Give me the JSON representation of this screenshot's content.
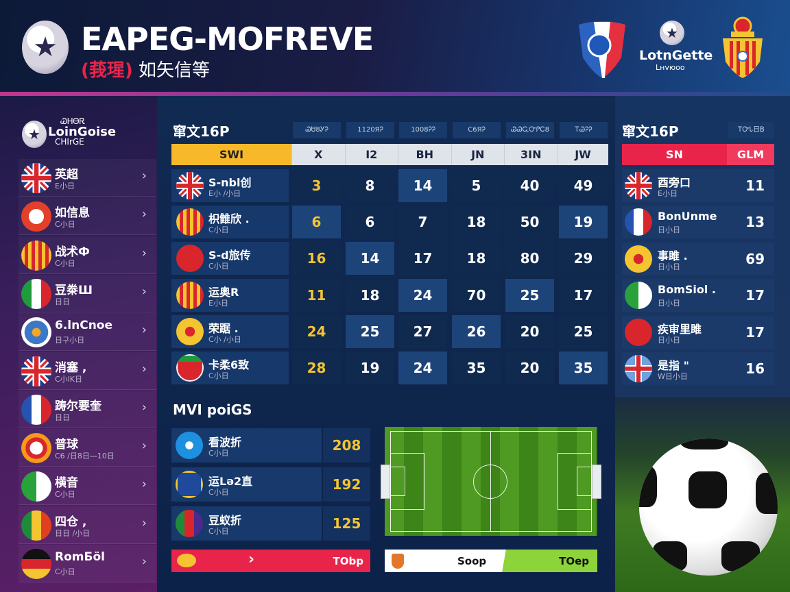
{
  "header": {
    "title": "EAPEG-MOFREVE",
    "subtitle_tag": "(莪瑆)",
    "subtitle": "如矢信等",
    "center_logo_text": "LotnGe​tte",
    "center_logo_sub": "Lнvюoо"
  },
  "sidebar": {
    "logo_top": "ᏊᎻᎾᎡ",
    "logo_main": "LoinGoise",
    "logo_sub": "CHIrGE",
    "items": [
      {
        "name": "英超",
        "sub": "E小日",
        "flag": "uk"
      },
      {
        "name": "如信息",
        "sub": "C小日",
        "flag": "crest-red"
      },
      {
        "name": "战术Ф",
        "sub": "C小日",
        "flag": "crest-spain"
      },
      {
        "name": "豆桊Ш",
        "sub": "日日",
        "flag": "italy"
      },
      {
        "name": "6.lnCnoe",
        "sub": "日구小日",
        "flag": "blue-badge"
      },
      {
        "name": "消塞 ,",
        "sub": "C小lK日",
        "flag": "uk"
      },
      {
        "name": "踌尔要奎",
        "sub": "日日",
        "flag": "france"
      },
      {
        "name": "普球",
        "sub": "C6 /日8日—10日",
        "flag": "crest-orange"
      },
      {
        "name": "横音",
        "sub": "C小日",
        "flag": "green-white"
      },
      {
        "name": "四仓 ,",
        "sub": "日日 /小日",
        "flag": "green-yellow-red"
      },
      {
        "name": "RomБöl",
        "sub": "C小日",
        "flag": "germany"
      }
    ]
  },
  "standings": {
    "title": "窜文16P",
    "tabs": [
      "ᏊᏌ8ᎩᎮ",
      "1120ЯᎮ",
      "1008ᎮᎮ",
      "C6ЯᎮ",
      "ᏊᏊᏩᏅᎵᏟ8",
      "ᎢᏊᎮᎮ"
    ],
    "columns": [
      "SWI",
      "X",
      "I2",
      "BH",
      "JN",
      "3IN",
      "JW"
    ],
    "rows": [
      {
        "name": "S-nbl创",
        "sub": "E小 /小日",
        "flag": "uk",
        "values": [
          "3",
          "8",
          "14",
          "5",
          "40",
          "49"
        ],
        "highlight": [
          3
        ]
      },
      {
        "name": "枳雔欣 .",
        "sub": "C小日",
        "flag": "crest-spain",
        "values": [
          "6",
          "6",
          "7",
          "18",
          "50",
          "19"
        ],
        "highlight": [
          1,
          6
        ]
      },
      {
        "name": "S-d旅传",
        "sub": "C小日",
        "flag": "red-logo",
        "values": [
          "16",
          "14",
          "17",
          "18",
          "80",
          "29"
        ],
        "highlight": [
          2
        ]
      },
      {
        "name": "运奥R",
        "sub": "E小日",
        "flag": "crest-spain",
        "values": [
          "11",
          "18",
          "24",
          "70",
          "25",
          "17"
        ],
        "highlight": [
          3,
          5
        ]
      },
      {
        "name": "荣踞 .",
        "sub": "C小 /小日",
        "flag": "yellow-logo",
        "values": [
          "24",
          "25",
          "27",
          "26",
          "20",
          "25"
        ],
        "highlight": [
          2,
          4
        ]
      },
      {
        "name": "卡柔6致",
        "sub": "C小日",
        "flag": "red-shield",
        "values": [
          "28",
          "19",
          "24",
          "35",
          "20",
          "35"
        ],
        "highlight": [
          3,
          6
        ]
      }
    ]
  },
  "scorers": {
    "title": "窜文16P",
    "tab": "ᎢᏅᏓ日Ᏼ",
    "columns": [
      "SN",
      "GLM"
    ],
    "rows": [
      {
        "name": "酉旁口",
        "sub": "E小日",
        "flag": "uk",
        "value": "11"
      },
      {
        "name": "BonUnme",
        "sub": "日小日",
        "flag": "france-shield",
        "value": "13"
      },
      {
        "name": "事雎 .",
        "sub": "日小日",
        "flag": "yellow-logo",
        "value": "69"
      },
      {
        "name": "BomSiol .",
        "sub": "日小日",
        "flag": "green-white",
        "value": "17"
      },
      {
        "name": "疾审里雎",
        "sub": "日小日",
        "flag": "red-logo",
        "value": "17"
      },
      {
        "name": "是指 \"",
        "sub": "W日小日",
        "flag": "uk-light",
        "value": "16"
      }
    ]
  },
  "mvp": {
    "title": "MVI poiGS",
    "rows": [
      {
        "name": "看波折",
        "sub": "C小日",
        "flag": "blue-logo",
        "value": "208"
      },
      {
        "name": "运Lə2直",
        "sub": "C小日",
        "flag": "blue-gold",
        "value": "192"
      },
      {
        "name": "豆蚁折",
        "sub": "C小日",
        "flag": "green-red-purple",
        "value": "125"
      }
    ],
    "bar_left_label": "TObp",
    "bar_right_mid": "Soop",
    "bar_right_label": "TOep"
  },
  "colors": {
    "accent_yellow": "#f7b92a",
    "accent_red": "#e8244a",
    "accent_pink": "#c2378e",
    "panel_blue": "#17386a",
    "pitch_green": "#4f9a22"
  }
}
